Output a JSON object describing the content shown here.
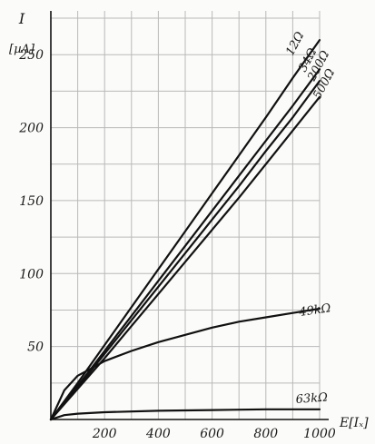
{
  "chart_data": {
    "type": "line",
    "ylabel": "I",
    "ylabel_unit": "[µA]",
    "xlabel": "E[Iₓ]",
    "xlim": [
      0,
      1000
    ],
    "ylim": [
      0,
      280
    ],
    "grid": true,
    "x_ticks": [
      {
        "value": 200,
        "label": "200"
      },
      {
        "value": 400,
        "label": "400"
      },
      {
        "value": 600,
        "label": "600"
      },
      {
        "value": 800,
        "label": "800"
      },
      {
        "value": 1000,
        "label": "1000"
      }
    ],
    "y_ticks": [
      {
        "value": 50,
        "label": "50"
      },
      {
        "value": 100,
        "label": "100"
      },
      {
        "value": 150,
        "label": "150"
      },
      {
        "value": 200,
        "label": "200"
      },
      {
        "value": 250,
        "label": "250"
      }
    ],
    "series": [
      {
        "name": "12Ω",
        "x": [
          0,
          100,
          200,
          300,
          400,
          500,
          600,
          700,
          800,
          900,
          1000
        ],
        "y": [
          0,
          25,
          51,
          77,
          103,
          129,
          155,
          181,
          207,
          234,
          260
        ]
      },
      {
        "name": "34Ω",
        "x": [
          0,
          100,
          200,
          300,
          400,
          500,
          600,
          700,
          800,
          900,
          1000
        ],
        "y": [
          0,
          23,
          47,
          71,
          95,
          119,
          143,
          167,
          191,
          215,
          240
        ]
      },
      {
        "name": "200Ω",
        "x": [
          0,
          100,
          200,
          300,
          400,
          500,
          600,
          700,
          800,
          900,
          1000
        ],
        "y": [
          0,
          22,
          45,
          68,
          91,
          114,
          137,
          160,
          184,
          207,
          232
        ]
      },
      {
        "name": "500Ω",
        "x": [
          0,
          100,
          200,
          300,
          400,
          500,
          600,
          700,
          800,
          900,
          1000
        ],
        "y": [
          0,
          21,
          42,
          64,
          86,
          108,
          130,
          152,
          175,
          198,
          221
        ]
      },
      {
        "name": "49kΩ",
        "x": [
          0,
          50,
          100,
          150,
          200,
          300,
          400,
          500,
          600,
          700,
          800,
          900,
          1000
        ],
        "y": [
          0,
          20,
          30,
          35,
          40,
          47,
          53,
          58,
          63,
          67,
          70,
          73,
          76
        ]
      },
      {
        "name": "63kΩ",
        "x": [
          0,
          50,
          100,
          200,
          400,
          600,
          800,
          1000
        ],
        "y": [
          0,
          3,
          4,
          5,
          6,
          6.5,
          7,
          7
        ]
      }
    ]
  }
}
